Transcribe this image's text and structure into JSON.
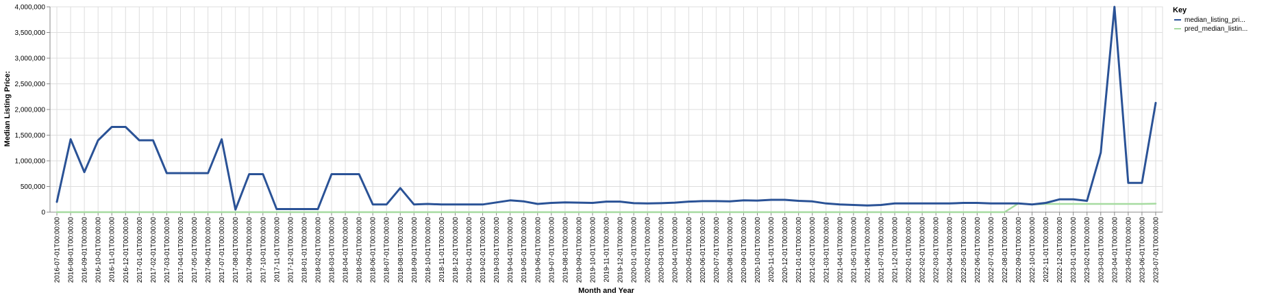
{
  "chart_data": {
    "type": "line",
    "xlabel": "Month and Year",
    "ylabel": "Median Listing Price:",
    "ylim": [
      0,
      4000000
    ],
    "y_ticks": [
      "0",
      "500,000",
      "1,000,000",
      "1,500,000",
      "2,000,000",
      "2,500,000",
      "3,000,000",
      "3,500,000",
      "4,000,000"
    ],
    "grid": true,
    "legend": {
      "title": "Key",
      "placement": "right"
    },
    "x": [
      "2016-07-01T00:00:00",
      "2016-08-01T00:00:00",
      "2016-09-01T00:00:00",
      "2016-10-01T00:00:00",
      "2016-11-01T00:00:00",
      "2016-12-01T00:00:00",
      "2017-01-01T00:00:00",
      "2017-02-01T00:00:00",
      "2017-03-01T00:00:00",
      "2017-04-01T00:00:00",
      "2017-05-01T00:00:00",
      "2017-06-01T00:00:00",
      "2017-07-01T00:00:00",
      "2017-08-01T00:00:00",
      "2017-09-01T00:00:00",
      "2017-10-01T00:00:00",
      "2017-11-01T00:00:00",
      "2017-12-01T00:00:00",
      "2018-01-01T00:00:00",
      "2018-02-01T00:00:00",
      "2018-03-01T00:00:00",
      "2018-04-01T00:00:00",
      "2018-05-01T00:00:00",
      "2018-06-01T00:00:00",
      "2018-07-01T00:00:00",
      "2018-08-01T00:00:00",
      "2018-09-01T00:00:00",
      "2018-10-01T00:00:00",
      "2018-11-01T00:00:00",
      "2018-12-01T00:00:00",
      "2019-01-01T00:00:00",
      "2019-02-01T00:00:00",
      "2019-03-01T00:00:00",
      "2019-04-01T00:00:00",
      "2019-05-01T00:00:00",
      "2019-06-01T00:00:00",
      "2019-07-01T00:00:00",
      "2019-08-01T00:00:00",
      "2019-09-01T00:00:00",
      "2019-10-01T00:00:00",
      "2019-11-01T00:00:00",
      "2019-12-01T00:00:00",
      "2020-01-01T00:00:00",
      "2020-02-01T00:00:00",
      "2020-03-01T00:00:00",
      "2020-04-01T00:00:00",
      "2020-05-01T00:00:00",
      "2020-06-01T00:00:00",
      "2020-07-01T00:00:00",
      "2020-08-01T00:00:00",
      "2020-09-01T00:00:00",
      "2020-10-01T00:00:00",
      "2020-11-01T00:00:00",
      "2020-12-01T00:00:00",
      "2021-01-01T00:00:00",
      "2021-02-01T00:00:00",
      "2021-03-01T00:00:00",
      "2021-04-01T00:00:00",
      "2021-05-01T00:00:00",
      "2021-06-01T00:00:00",
      "2021-07-01T00:00:00",
      "2021-12-01T00:00:00",
      "2022-01-01T00:00:00",
      "2022-02-01T00:00:00",
      "2022-03-01T00:00:00",
      "2022-04-01T00:00:00",
      "2022-05-01T00:00:00",
      "2022-06-01T00:00:00",
      "2022-07-01T00:00:00",
      "2022-08-01T00:00:00",
      "2022-09-01T00:00:00",
      "2022-10-01T00:00:00",
      "2022-11-01T00:00:00",
      "2022-12-01T00:00:00",
      "2023-01-01T00:00:00",
      "2023-02-01T00:00:00",
      "2023-03-01T00:00:00",
      "2023-04-01T00:00:00",
      "2023-05-01T00:00:00",
      "2023-06-01T00:00:00",
      "2023-07-01T00:00:00"
    ],
    "series": [
      {
        "name": "median_listing_pri...",
        "color": "#2a5296",
        "values": [
          200000,
          1420000,
          780000,
          1400000,
          1660000,
          1660000,
          1400000,
          1400000,
          760000,
          760000,
          760000,
          760000,
          1420000,
          50000,
          740000,
          740000,
          60000,
          60000,
          60000,
          60000,
          740000,
          740000,
          740000,
          150000,
          150000,
          470000,
          150000,
          160000,
          150000,
          150000,
          150000,
          150000,
          190000,
          230000,
          210000,
          160000,
          180000,
          190000,
          185000,
          180000,
          205000,
          205000,
          175000,
          170000,
          175000,
          185000,
          205000,
          215000,
          215000,
          210000,
          230000,
          225000,
          240000,
          240000,
          220000,
          210000,
          170000,
          150000,
          140000,
          130000,
          140000,
          170000,
          170000,
          170000,
          170000,
          170000,
          180000,
          180000,
          170000,
          170000,
          170000,
          150000,
          180000,
          250000,
          250000,
          220000,
          1160000,
          4000000,
          570000,
          570000,
          2130000
        ]
      },
      {
        "name": "pred_median_listin...",
        "color": "#a6dba0",
        "values": [
          0,
          0,
          0,
          0,
          0,
          0,
          0,
          0,
          0,
          0,
          0,
          0,
          0,
          0,
          0,
          0,
          0,
          0,
          0,
          0,
          0,
          0,
          0,
          0,
          0,
          0,
          0,
          0,
          0,
          0,
          0,
          0,
          0,
          0,
          0,
          0,
          0,
          0,
          0,
          0,
          0,
          0,
          0,
          0,
          0,
          0,
          0,
          0,
          0,
          0,
          0,
          0,
          0,
          0,
          0,
          0,
          0,
          0,
          0,
          0,
          0,
          0,
          0,
          0,
          0,
          0,
          0,
          0,
          0,
          0,
          170000,
          150000,
          160000,
          160000,
          160000,
          160000,
          160000,
          160000,
          160000,
          160000,
          165000
        ]
      }
    ]
  }
}
